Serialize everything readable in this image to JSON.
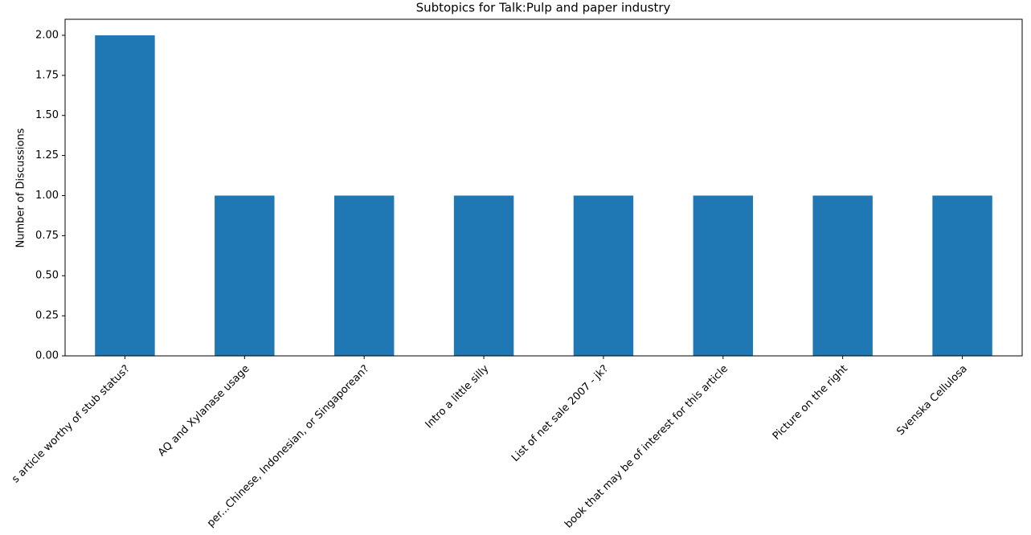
{
  "chart_data": {
    "type": "bar",
    "title": "Subtopics for Talk:Pulp and paper industry",
    "y_label": "Number of Discussions",
    "categories": [
      "s article worthy of stub status?",
      "AQ and Xylanase usage",
      "per...Chinese, Indonesian, or Singaporean?",
      "Intro a little silly",
      "List of net sale 2007 - jk?",
      "book that may be of interest for this article",
      "Picture on the right",
      "Svenska Cellulosa"
    ],
    "values": [
      2,
      1,
      1,
      1,
      1,
      1,
      1,
      1
    ],
    "color": "#1f77b4",
    "ylim": [
      0,
      2.1
    ],
    "yticks": [
      {
        "value": 0,
        "label": "0.00"
      },
      {
        "value": 0.25,
        "label": "0.25"
      },
      {
        "value": 0.5,
        "label": "0.50"
      },
      {
        "value": 0.75,
        "label": "0.75"
      },
      {
        "value": 1,
        "label": "1.00"
      },
      {
        "value": 1.25,
        "label": "1.25"
      },
      {
        "value": 1.5,
        "label": "1.50"
      },
      {
        "value": 1.75,
        "label": "1.75"
      },
      {
        "value": 2,
        "label": "2.00"
      }
    ],
    "grid": false
  }
}
